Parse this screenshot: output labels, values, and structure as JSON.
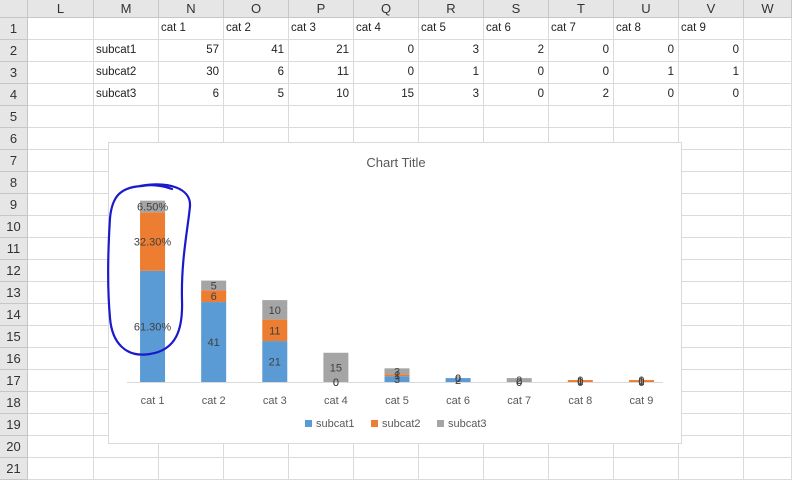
{
  "spreadsheet": {
    "columns": [
      "L",
      "M",
      "N",
      "O",
      "P",
      "Q",
      "R",
      "S",
      "T",
      "U",
      "V",
      "W"
    ],
    "rows": [
      "1",
      "2",
      "3",
      "4",
      "5",
      "6",
      "7",
      "8",
      "9",
      "10",
      "11",
      "12",
      "13",
      "14",
      "15",
      "16",
      "17",
      "18",
      "19",
      "20",
      "21"
    ],
    "header_row": [
      "",
      "cat 1",
      "cat 2",
      "cat 3",
      "cat 4",
      "cat 5",
      "cat 6",
      "cat 7",
      "cat 8",
      "cat 9"
    ],
    "data_rows": [
      [
        "subcat1",
        "57",
        "41",
        "21",
        "0",
        "3",
        "2",
        "0",
        "0",
        "0"
      ],
      [
        "subcat2",
        "30",
        "6",
        "11",
        "0",
        "1",
        "0",
        "0",
        "1",
        "1"
      ],
      [
        "subcat3",
        "6",
        "5",
        "10",
        "15",
        "3",
        "0",
        "2",
        "0",
        "0"
      ]
    ]
  },
  "colors": {
    "subcat1": "#5b9bd5",
    "subcat2": "#ed7d31",
    "subcat3": "#a5a5a5",
    "annotation": "#1a1acc"
  },
  "chart_data": {
    "type": "bar",
    "stacked": true,
    "title": "Chart Title",
    "categories": [
      "cat 1",
      "cat 2",
      "cat 3",
      "cat 4",
      "cat 5",
      "cat 6",
      "cat 7",
      "cat 8",
      "cat 9"
    ],
    "series": [
      {
        "name": "subcat1",
        "values": [
          57,
          41,
          21,
          0,
          3,
          2,
          0,
          0,
          0
        ]
      },
      {
        "name": "subcat2",
        "values": [
          30,
          6,
          11,
          0,
          1,
          0,
          0,
          1,
          1
        ]
      },
      {
        "name": "subcat3",
        "values": [
          6,
          5,
          10,
          15,
          3,
          0,
          2,
          0,
          0
        ]
      }
    ],
    "data_labels": [
      [
        "61.30%",
        "41",
        "21",
        "0",
        "3",
        "2",
        "0",
        "0",
        "0"
      ],
      [
        "32.30%",
        "6",
        "11",
        "0",
        "1",
        "0",
        "0",
        "1",
        "1"
      ],
      [
        "6.50%",
        "5",
        "10",
        "15",
        "3",
        "0",
        "2",
        "0",
        "0"
      ]
    ],
    "legend": [
      "subcat1",
      "subcat2",
      "subcat3"
    ],
    "legend_position": "bottom",
    "grid": false
  }
}
